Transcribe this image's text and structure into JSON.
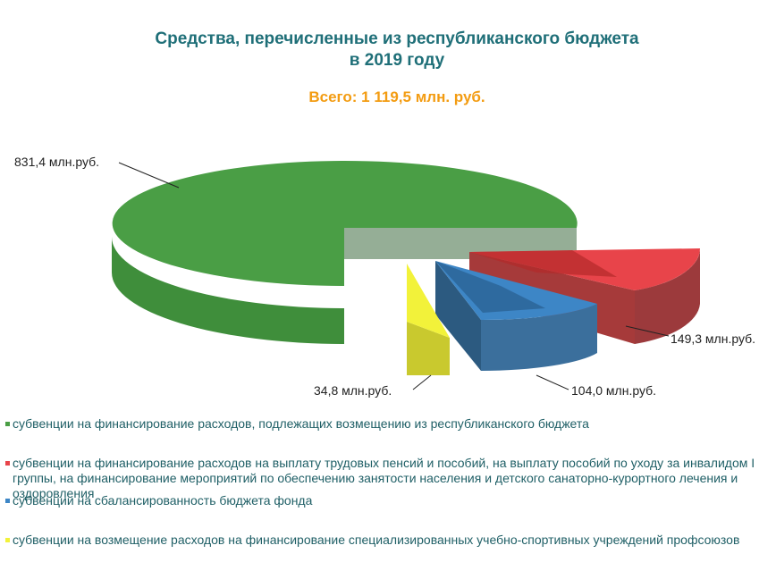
{
  "chart_data": {
    "type": "pie",
    "title_lines": [
      "Средства, перечисленные из республиканского бюджета",
      "в 2019 году"
    ],
    "subtitle": "Всего: 1 119,5 млн. руб.",
    "unit": "млн.руб.",
    "slices": [
      {
        "name": "субвенции на финансирование расходов, подлежащих возмещению из республиканского бюджета",
        "value": 831.4,
        "label": "831,4 млн.руб.",
        "color": "#4a9e45"
      },
      {
        "name": "субвенции на финансирование расходов на выплату трудовых пенсий и пособий, на выплату пособий по уходу за инвалидом I группы, на финансирование мероприятий по обеспечению занятости населения и детского санаторно-курортного лечения и оздоровления",
        "value": 149.3,
        "label": "149,3 млн.руб.",
        "color": "#e8444a"
      },
      {
        "name": "субвенции на сбалансированность бюджета фонда",
        "value": 104.0,
        "label": "104,0 млн.руб.",
        "color": "#3d86c6"
      },
      {
        "name": "субвенции на возмещение расходов на финансирование специализированных учебно-спортивных учреждений профсоюзов",
        "value": 34.8,
        "label": "34,8 млн.руб.",
        "color": "#f2f23a"
      }
    ],
    "legend_position": "bottom",
    "style": "3d-exploded"
  }
}
